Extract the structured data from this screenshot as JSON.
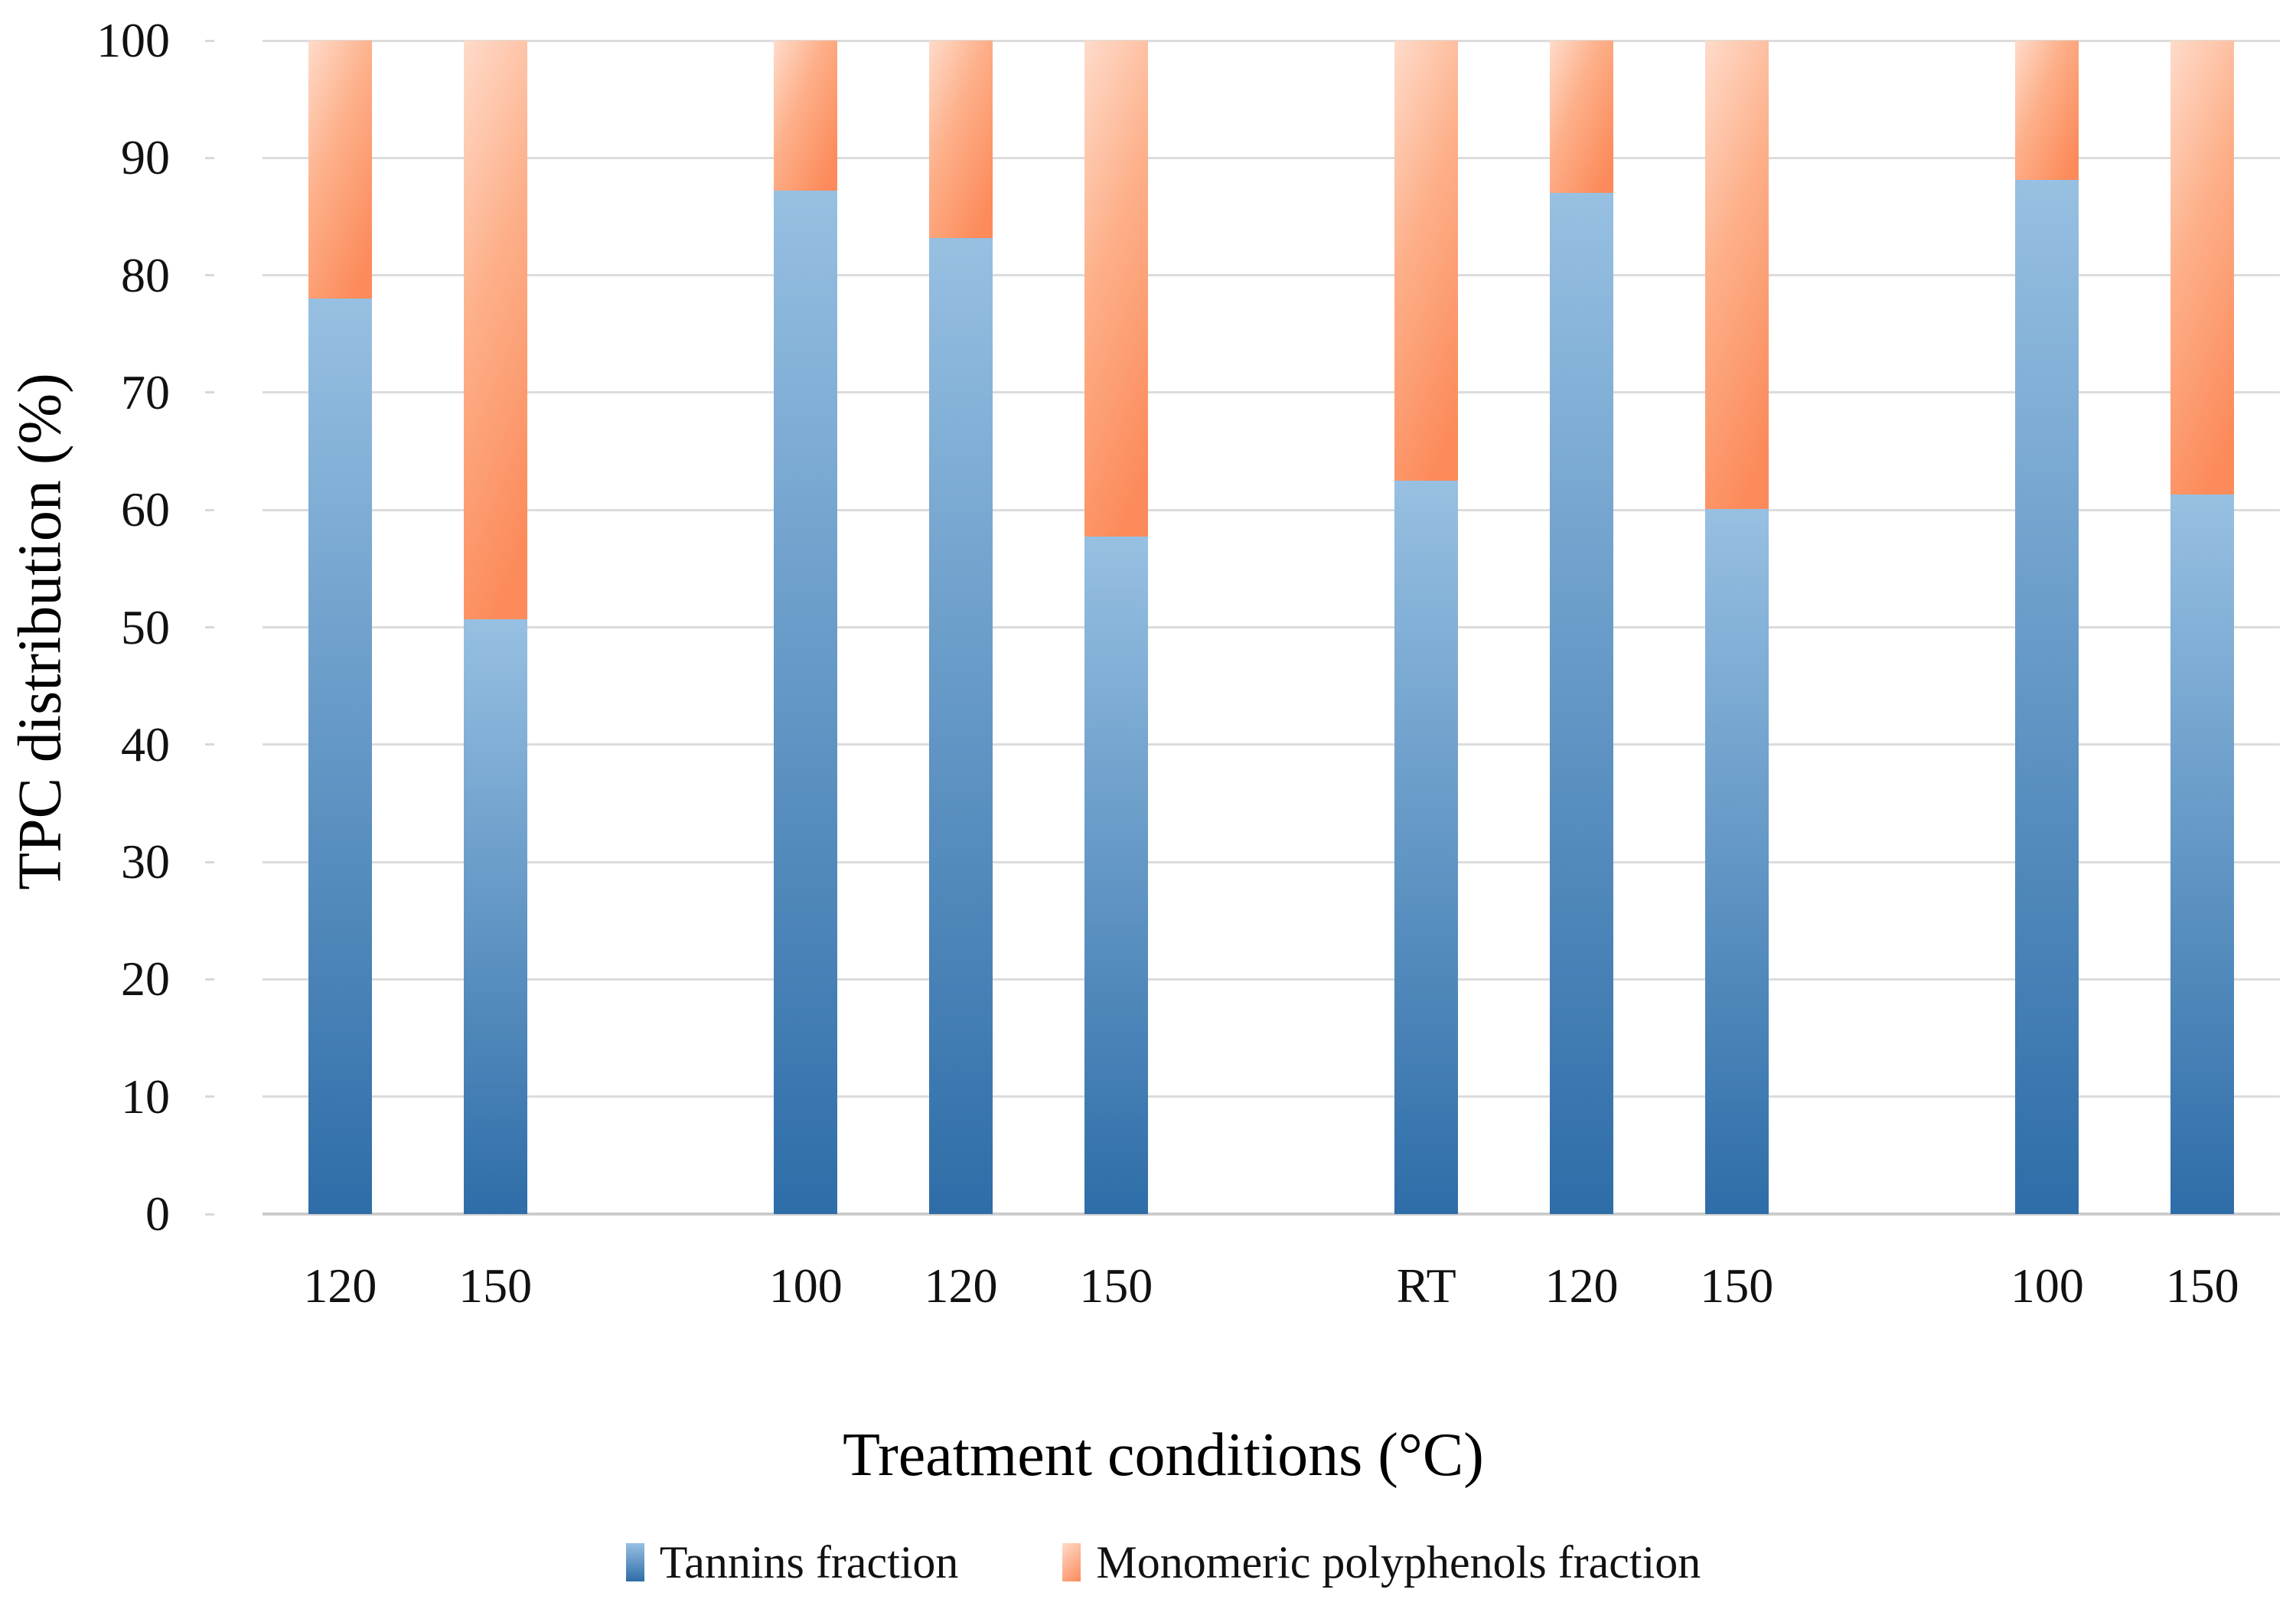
{
  "chart_data": {
    "type": "bar",
    "stacked": true,
    "title": "",
    "xlabel": "Treatment conditions (°C)",
    "ylabel": "TPC distribution (%)",
    "ylim": [
      0,
      100
    ],
    "yticks": [
      0,
      10,
      20,
      30,
      40,
      50,
      60,
      70,
      80,
      90,
      100
    ],
    "grid": true,
    "legend_position": "bottom",
    "categories": [
      "120",
      "150",
      "100",
      "120",
      "150",
      "RT",
      "120",
      "150",
      "100",
      "150"
    ],
    "slot_positions": [
      1,
      2,
      4,
      5,
      6,
      8,
      9,
      10,
      12,
      13
    ],
    "total_slots": 13,
    "series": [
      {
        "name": "Tannins fraction",
        "values": [
          78.0,
          50.7,
          87.2,
          83.2,
          57.7,
          62.5,
          87.0,
          60.1,
          88.1,
          61.3
        ]
      },
      {
        "name": "Monomeric polyphenols fraction",
        "values": [
          22.0,
          49.3,
          12.8,
          16.8,
          42.3,
          37.5,
          13.0,
          39.9,
          11.9,
          38.7
        ]
      }
    ]
  },
  "colors": {
    "tannins_gradient_top": "#97c0e2",
    "tannins_gradient_bottom": "#2e6da8",
    "monomeric_gradient_light": "#fedbca",
    "monomeric_gradient_mid": "#fdb08a",
    "monomeric_gradient_dark": "#fc8a5a",
    "gridline": "#dcdcdc",
    "axis_line": "#cccccc",
    "text": "#111111"
  }
}
